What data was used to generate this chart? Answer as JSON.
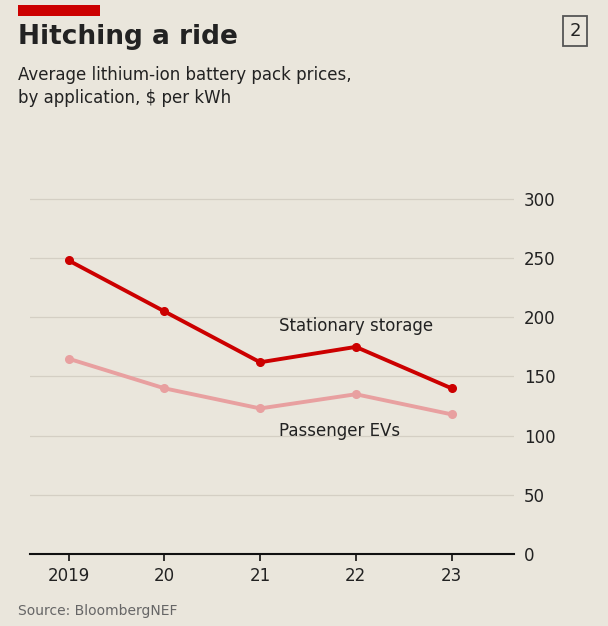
{
  "title": "Hitching a ride",
  "subtitle": "Average lithium-ion battery pack prices,\nby application, $ per kWh",
  "source": "Source: BloombergNEF",
  "chart_number": "2",
  "x_values": [
    2019,
    2020,
    2021,
    2022,
    2023
  ],
  "x_tick_labels": [
    "2019",
    "20",
    "21",
    "22",
    "23"
  ],
  "stationary_storage": [
    248,
    205,
    162,
    175,
    140
  ],
  "passenger_evs": [
    165,
    140,
    123,
    135,
    118
  ],
  "stationary_label": "Stationary storage",
  "ev_label": "Passenger EVs",
  "stationary_color": "#CC0000",
  "ev_color": "#E8A0A0",
  "background_color": "#EAE6DC",
  "ylim": [
    0,
    320
  ],
  "yticks": [
    0,
    50,
    100,
    150,
    200,
    250,
    300
  ],
  "line_width": 2.8,
  "marker_size": 5.5,
  "title_fontsize": 19,
  "subtitle_fontsize": 12,
  "axis_fontsize": 12,
  "source_fontsize": 10,
  "label_fontsize": 12,
  "red_bar_color": "#CC0000",
  "spine_color": "#111111",
  "grid_color": "#D4CFC4",
  "text_color": "#222222",
  "source_color": "#666666"
}
